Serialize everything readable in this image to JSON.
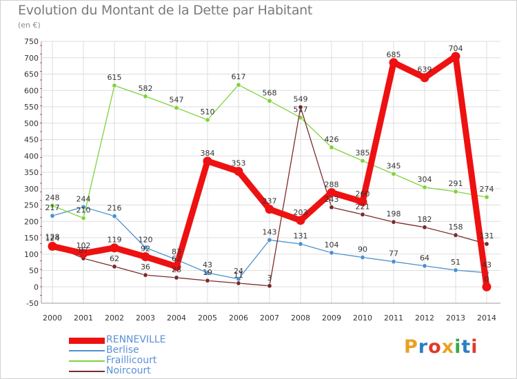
{
  "title": "Evolution du Montant de la Dette par Habitant",
  "unit_label": "(en €)",
  "logo": {
    "text": "Proxiti",
    "colors": [
      "#e8a126",
      "#2b7fc4",
      "#e03a2a",
      "#e8a126",
      "#3aa84a",
      "#2b7fc4",
      "#e03a2a"
    ]
  },
  "chart_data": {
    "type": "line",
    "title": "Evolution du Montant de la Dette par Habitant",
    "ylabel": "(en €)",
    "xlabel": "",
    "x": [
      "2000",
      "2001",
      "2002",
      "2003",
      "2004",
      "2005",
      "2006",
      "2007",
      "2008",
      "2009",
      "2010",
      "2011",
      "2012",
      "2013",
      "2014"
    ],
    "ylim": [
      -50,
      750
    ],
    "yticks": [
      -50,
      0,
      50,
      100,
      150,
      200,
      250,
      300,
      350,
      400,
      450,
      500,
      550,
      600,
      650,
      700,
      750
    ],
    "grid": true,
    "legend_position": "bottom-left",
    "series": [
      {
        "name": "RENNEVILLE",
        "color": "#ee1111",
        "values": [
          124,
          102,
          119,
          92,
          62,
          384,
          353,
          237,
          203,
          288,
          260,
          685,
          639,
          704,
          0
        ],
        "labels": [
          "124",
          "102",
          "119",
          "92",
          "62",
          "384",
          "353",
          "237",
          "203",
          "288",
          "260",
          "685",
          "639",
          "704",
          "0"
        ]
      },
      {
        "name": "Berlise",
        "color": "#4a90d0",
        "values": [
          217,
          244,
          216,
          120,
          83,
          43,
          24,
          143,
          131,
          104,
          90,
          77,
          64,
          51,
          43
        ],
        "labels": [
          "217",
          "244",
          "216",
          "120",
          "83",
          "43",
          "24",
          "143",
          "131",
          "104",
          "90",
          "77",
          "64",
          "51",
          "43"
        ]
      },
      {
        "name": "Fraillicourt",
        "color": "#7ed23a",
        "values": [
          248,
          210,
          615,
          582,
          547,
          510,
          617,
          568,
          517,
          426,
          385,
          345,
          304,
          291,
          274
        ],
        "labels": [
          "248",
          "210",
          "615",
          "582",
          "547",
          "510",
          "617",
          "568",
          "517",
          "426",
          "385",
          "345",
          "304",
          "291",
          "274"
        ]
      },
      {
        "name": "Noircourt",
        "color": "#7a2a2a",
        "values": [
          128,
          87,
          62,
          36,
          28,
          19,
          11,
          3,
          549,
          243,
          221,
          198,
          182,
          158,
          131
        ],
        "labels": [
          "128",
          "87",
          "62",
          "36",
          "28",
          "19",
          "11",
          "3",
          "549",
          "243",
          "221",
          "198",
          "182",
          "158",
          "131"
        ]
      }
    ]
  }
}
